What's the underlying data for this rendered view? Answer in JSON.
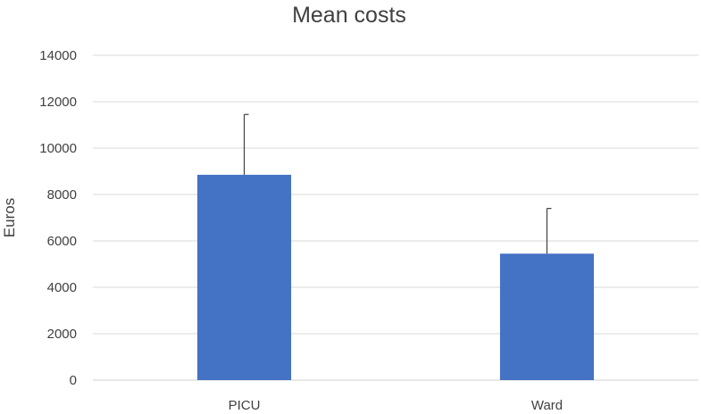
{
  "chart_data": {
    "type": "bar",
    "title": "Mean costs",
    "xlabel": "",
    "ylabel": "Euros",
    "ylim": [
      0,
      14000
    ],
    "yticks": [
      0,
      2000,
      4000,
      6000,
      8000,
      10000,
      12000,
      14000
    ],
    "categories": [
      "PICU",
      "Ward"
    ],
    "values": [
      8850,
      5450
    ],
    "error_upper": [
      2600,
      1950
    ],
    "bar_color": "#4472c4",
    "grid": true,
    "legend": "none"
  }
}
